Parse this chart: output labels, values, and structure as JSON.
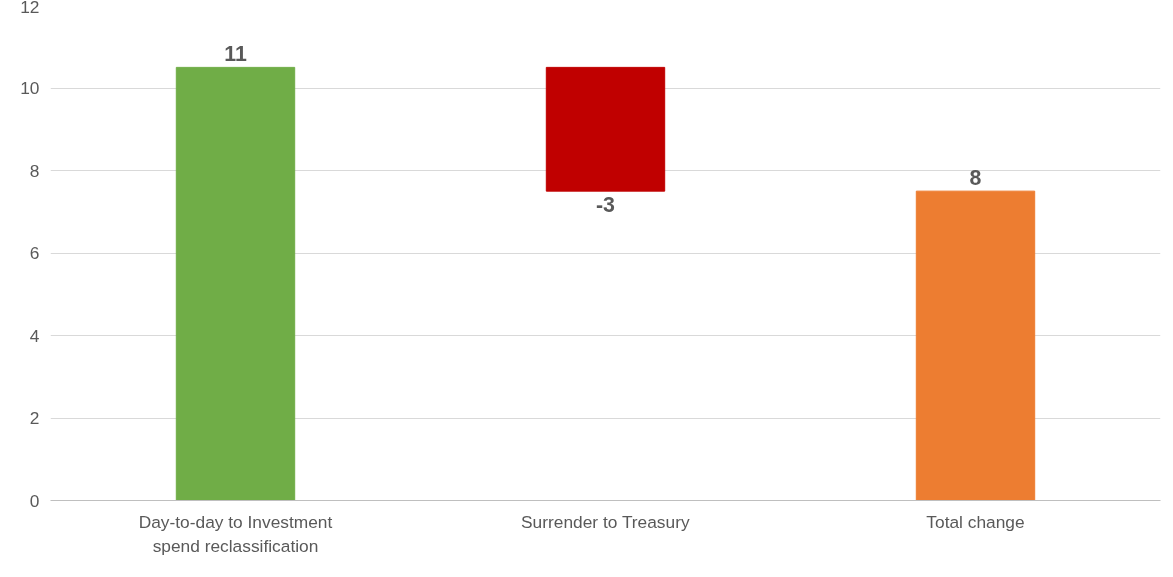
{
  "chart_data": {
    "type": "bar",
    "categories": [
      "Day-to-day to Investment spend reclassification",
      "Surrender to Treasury",
      "Total change"
    ],
    "values": [
      10.5,
      -3.0,
      7.5
    ],
    "base": [
      0,
      10.5,
      0
    ],
    "colors": [
      "#70ad47",
      "#c00000",
      "#ed7d31"
    ],
    "value_labels": [
      "11",
      "-3",
      "8"
    ],
    "ylim": [
      0,
      12
    ],
    "yticks": [
      0,
      2,
      4,
      6,
      8,
      10,
      12
    ],
    "grid": "y"
  }
}
